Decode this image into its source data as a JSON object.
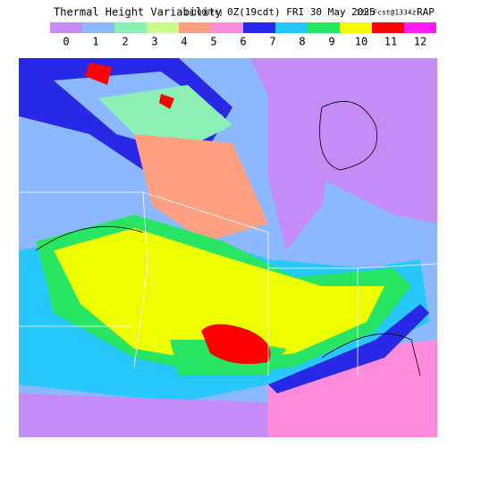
{
  "header": {
    "title": "Thermal Height Variability",
    "units": "[x1000ft]",
    "time": "0Z(19cdt) FRI 30 May 2025",
    "forecast": "12hrFcst@1334z",
    "model": "RAP"
  },
  "legend": {
    "labels": [
      "0",
      "1",
      "2",
      "3",
      "4",
      "5",
      "6",
      "7",
      "8",
      "9",
      "10",
      "11",
      "12"
    ],
    "colors": [
      "#c48cf4",
      "#8cb8ff",
      "#8cf0b4",
      "#c8ff8c",
      "#ffa082",
      "#ff8cdc",
      "#2828e6",
      "#28c8ff",
      "#28e664",
      "#f0ff00",
      "#ff0000",
      "#ff1ef0"
    ]
  }
}
